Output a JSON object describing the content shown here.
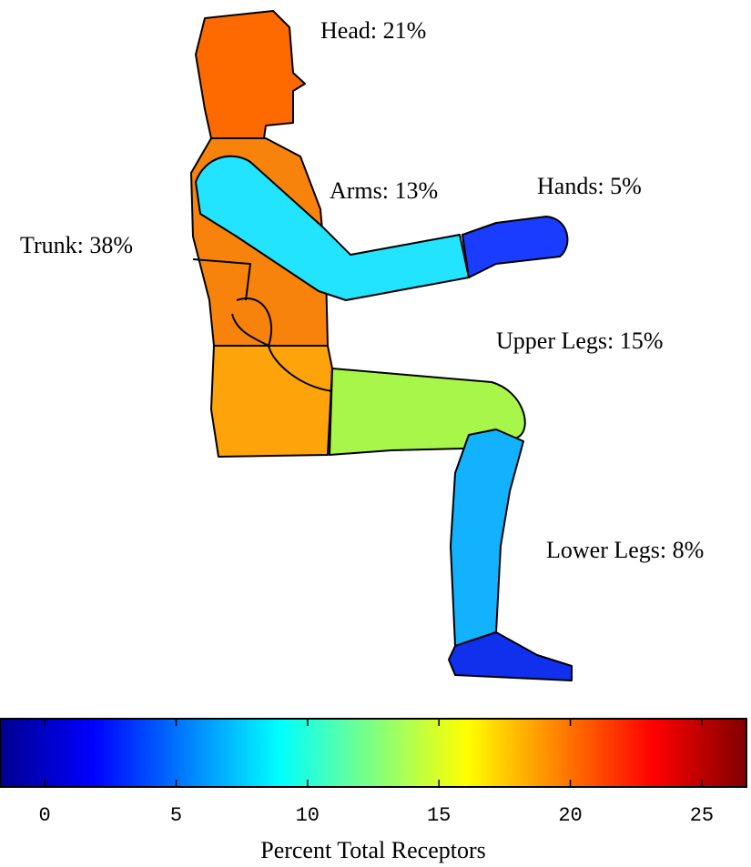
{
  "labels": [
    "Head: 21%",
    "Arms: 13%",
    "Hands: 5%",
    "Trunk: 38%",
    "Upper Legs: 15%",
    "Lower Legs: 8%"
  ],
  "colorbar": {
    "label": "Percent Total Receptors",
    "lim": [
      -1.7,
      26.7
    ],
    "ticks": [
      0,
      5,
      10,
      15,
      20,
      25
    ]
  }
}
